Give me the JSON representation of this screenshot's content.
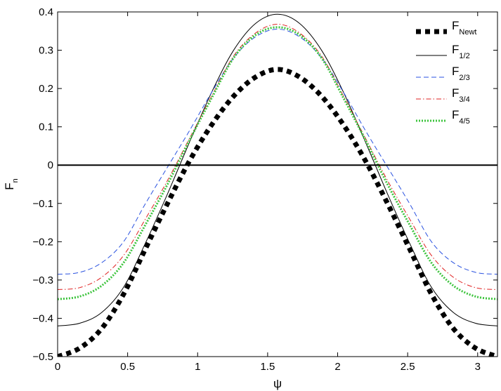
{
  "chart_data": {
    "type": "line",
    "xlabel": "ψ",
    "ylabel_main": "F",
    "ylabel_sub": "n",
    "xlim": [
      0,
      3.14159
    ],
    "ylim": [
      -0.5,
      0.4
    ],
    "xticks": [
      0,
      0.5,
      1,
      1.5,
      2,
      2.5,
      3
    ],
    "xtick_labels": [
      "0",
      "0.5",
      "1",
      "1.5",
      "2",
      "2.5",
      "3"
    ],
    "yticks": [
      -0.5,
      -0.4,
      -0.3,
      -0.2,
      -0.1,
      0,
      0.1,
      0.2,
      0.3,
      0.4
    ],
    "ytick_labels": [
      "−0.5",
      "−0.4",
      "−0.3",
      "−0.2",
      "−0.1",
      "0",
      "0.1",
      "0.2",
      "0.3",
      "0.4"
    ],
    "grid": false,
    "legend_position": "top-right",
    "zero_line": true,
    "series": [
      {
        "key": "F_Newt",
        "name": "F",
        "subscript": "Newt",
        "color": "#000000",
        "style": "thick-dotted",
        "x": [
          0,
          0.157,
          0.314,
          0.471,
          0.628,
          0.785,
          0.942,
          1.1,
          1.257,
          1.414,
          1.571,
          1.728,
          1.885,
          2.042,
          2.199,
          2.356,
          2.513,
          2.67,
          2.827,
          2.985,
          3.142
        ],
        "values": [
          -0.5,
          -0.478,
          -0.427,
          -0.337,
          -0.218,
          -0.1,
          0.011,
          0.105,
          0.18,
          0.23,
          0.25,
          0.23,
          0.18,
          0.105,
          0.011,
          -0.1,
          -0.218,
          -0.337,
          -0.427,
          -0.478,
          -0.5
        ]
      },
      {
        "key": "F_1_2",
        "name": "F",
        "subscript": "1/2",
        "color": "#000000",
        "style": "solid",
        "x": [
          0,
          0.157,
          0.314,
          0.471,
          0.628,
          0.785,
          0.942,
          1.1,
          1.257,
          1.414,
          1.571,
          1.728,
          1.885,
          2.042,
          2.199,
          2.356,
          2.513,
          2.67,
          2.827,
          2.985,
          3.142
        ],
        "values": [
          -0.42,
          -0.413,
          -0.385,
          -0.319,
          -0.203,
          -0.075,
          0.06,
          0.19,
          0.3,
          0.37,
          0.394,
          0.37,
          0.3,
          0.19,
          0.06,
          -0.075,
          -0.203,
          -0.319,
          -0.385,
          -0.413,
          -0.42
        ]
      },
      {
        "key": "F_2_3",
        "name": "F",
        "subscript": "2/3",
        "color": "#2a52e0",
        "style": "dashed",
        "x": [
          0,
          0.157,
          0.314,
          0.471,
          0.628,
          0.785,
          0.942,
          1.1,
          1.257,
          1.414,
          1.571,
          1.728,
          1.885,
          2.042,
          2.199,
          2.356,
          2.513,
          2.67,
          2.827,
          2.985,
          3.142
        ],
        "values": [
          -0.285,
          -0.28,
          -0.255,
          -0.2,
          -0.1,
          -0.005,
          0.09,
          0.19,
          0.28,
          0.335,
          0.355,
          0.335,
          0.28,
          0.19,
          0.09,
          -0.005,
          -0.1,
          -0.2,
          -0.255,
          -0.28,
          -0.285
        ]
      },
      {
        "key": "F_3_4",
        "name": "F",
        "subscript": "3/4",
        "color": "#e02020",
        "style": "dash-dot",
        "x": [
          0,
          0.157,
          0.314,
          0.471,
          0.628,
          0.785,
          0.942,
          1.1,
          1.257,
          1.414,
          1.571,
          1.728,
          1.885,
          2.042,
          2.199,
          2.356,
          2.513,
          2.67,
          2.827,
          2.985,
          3.142
        ],
        "values": [
          -0.325,
          -0.32,
          -0.293,
          -0.236,
          -0.14,
          -0.04,
          0.07,
          0.18,
          0.285,
          0.345,
          0.368,
          0.345,
          0.285,
          0.18,
          0.07,
          -0.04,
          -0.14,
          -0.236,
          -0.293,
          -0.32,
          -0.325
        ]
      },
      {
        "key": "F_4_5",
        "name": "F",
        "subscript": "4/5",
        "color": "#3ec43e",
        "style": "dotted",
        "x": [
          0,
          0.157,
          0.314,
          0.471,
          0.628,
          0.785,
          0.942,
          1.1,
          1.257,
          1.414,
          1.571,
          1.728,
          1.885,
          2.042,
          2.199,
          2.356,
          2.513,
          2.67,
          2.827,
          2.985,
          3.142
        ],
        "values": [
          -0.35,
          -0.343,
          -0.315,
          -0.255,
          -0.155,
          -0.05,
          0.065,
          0.175,
          0.28,
          0.34,
          0.36,
          0.34,
          0.28,
          0.175,
          0.065,
          -0.05,
          -0.155,
          -0.255,
          -0.315,
          -0.343,
          -0.35
        ]
      }
    ]
  }
}
